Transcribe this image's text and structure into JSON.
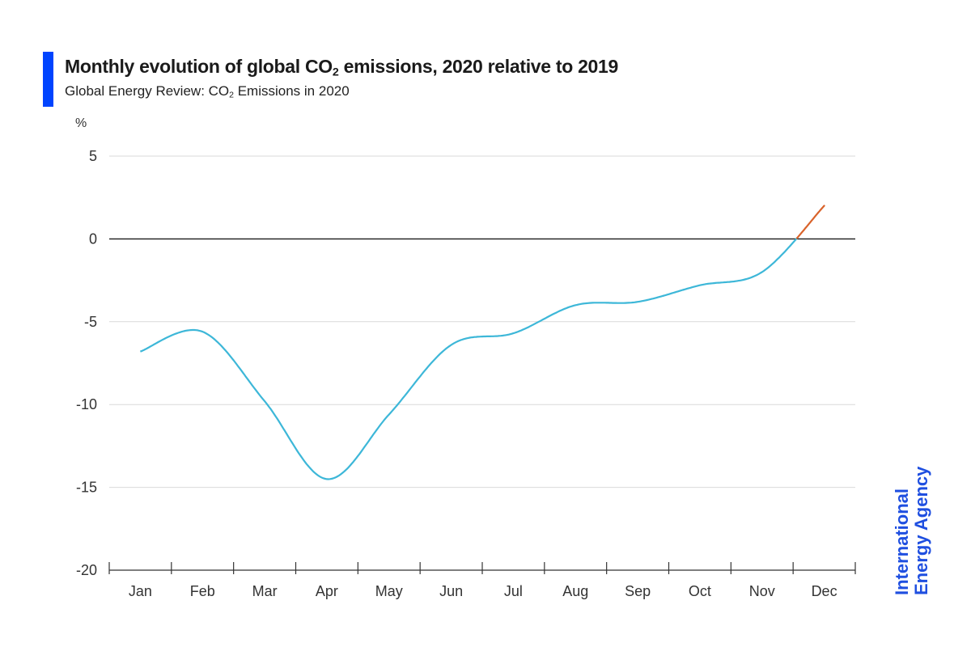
{
  "header": {
    "title_pre": "Monthly evolution of global CO",
    "title_sub": "2",
    "title_post": " emissions, 2020 relative to 2019",
    "subtitle_pre": "Global Energy Review: CO",
    "subtitle_sub": "2",
    "subtitle_post": " Emissions in 2020"
  },
  "logo": {
    "line1": "International",
    "line2": "Energy Agency"
  },
  "colors": {
    "accent": "#0044ff",
    "series_main": "#3db7d8",
    "series_end": "#d9632b",
    "gridline": "#d9d9d9",
    "zero_line": "#1a1a1a",
    "logo": "#1f4fe0"
  },
  "chart_data": {
    "type": "line",
    "ylabel": "%",
    "ylim": [
      -20,
      5
    ],
    "yticks": [
      5,
      0,
      -5,
      -10,
      -15,
      -20
    ],
    "categories": [
      "Jan",
      "Feb",
      "Mar",
      "Apr",
      "May",
      "Jun",
      "Jul",
      "Aug",
      "Sep",
      "Oct",
      "Nov",
      "Dec"
    ],
    "grid": true,
    "series": [
      {
        "values": [
          -6.8,
          -5.6,
          -9.8,
          -14.5,
          -10.6,
          -6.4,
          -5.7,
          -4.0,
          -3.8,
          -2.8,
          -2.0,
          2.0
        ]
      }
    ]
  }
}
